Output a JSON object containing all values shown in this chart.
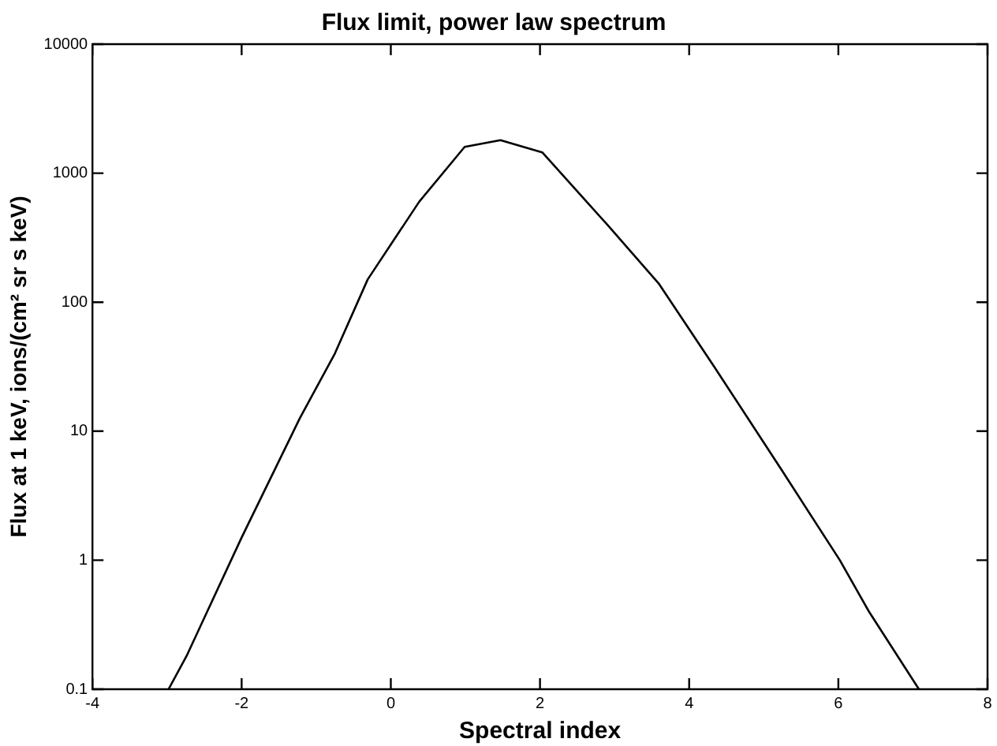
{
  "chart_data": {
    "type": "line",
    "title": "Flux limit, power law spectrum",
    "xlabel": "Spectral index",
    "ylabel": "Flux at 1 keV, ions/(cm² sr s keV)",
    "x": [
      -2.98,
      -2.74,
      -2,
      -1.22,
      -0.75,
      -0.31,
      0.38,
      0.99,
      1.47,
      2.03,
      2.9,
      3.59,
      4.33,
      5.24,
      6.02,
      6.41,
      7.08
    ],
    "series": [
      {
        "color": "#000000",
        "values": [
          0.1,
          0.18,
          1.5,
          12.6,
          40,
          150,
          600,
          1600,
          1800,
          1450,
          400,
          140,
          32,
          5,
          1,
          0.4,
          0.1
        ]
      }
    ],
    "xlim": [
      -4,
      8
    ],
    "xticks": [
      -4,
      -2,
      0,
      2,
      4,
      6,
      8
    ],
    "ylim": [
      0.1,
      10000
    ],
    "yticks": [
      0.1,
      1,
      10,
      100,
      1000,
      10000
    ],
    "log": "y",
    "grid": false,
    "legend": false,
    "marker": "none",
    "line_style": "solid"
  }
}
